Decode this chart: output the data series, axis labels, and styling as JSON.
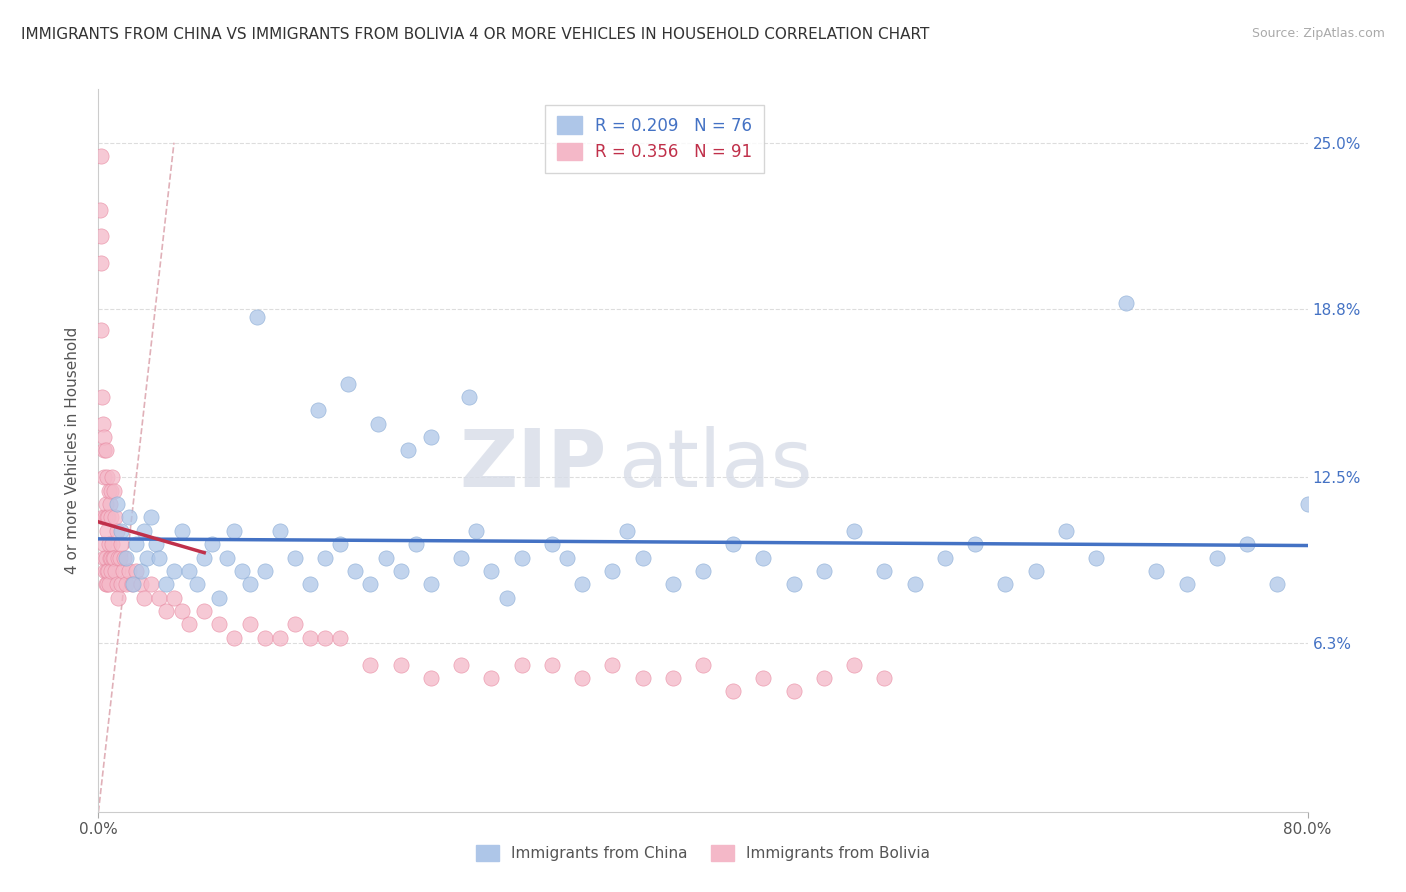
{
  "title": "IMMIGRANTS FROM CHINA VS IMMIGRANTS FROM BOLIVIA 4 OR MORE VEHICLES IN HOUSEHOLD CORRELATION CHART",
  "source": "Source: ZipAtlas.com",
  "ylabel": "4 or more Vehicles in Household",
  "xlim": [
    0.0,
    80.0
  ],
  "ylim": [
    0.0,
    27.0
  ],
  "ytick_labels_right": [
    "25.0%",
    "18.8%",
    "12.5%",
    "6.3%"
  ],
  "ytick_values": [
    25.0,
    18.8,
    12.5,
    6.3
  ],
  "china_R": 0.209,
  "china_N": 76,
  "bolivia_R": 0.356,
  "bolivia_N": 91,
  "china_color": "#aec6e8",
  "bolivia_color": "#f4b8c8",
  "china_line_color": "#4472c4",
  "bolivia_line_color": "#c0304a",
  "ref_line_color": "#d0a0a8",
  "legend_label_china": "Immigrants from China",
  "legend_label_bolivia": "Immigrants from Bolivia",
  "watermark_zip": "ZIP",
  "watermark_atlas": "atlas",
  "background_color": "#ffffff",
  "grid_color": "#dddddd",
  "china_x": [
    1.2,
    1.5,
    1.8,
    2.0,
    2.3,
    2.5,
    2.8,
    3.0,
    3.2,
    3.5,
    3.8,
    4.0,
    4.5,
    5.0,
    5.5,
    6.0,
    6.5,
    7.0,
    7.5,
    8.0,
    8.5,
    9.0,
    9.5,
    10.0,
    11.0,
    12.0,
    13.0,
    14.0,
    15.0,
    16.0,
    17.0,
    18.0,
    19.0,
    20.0,
    21.0,
    22.0,
    24.0,
    25.0,
    26.0,
    27.0,
    28.0,
    30.0,
    31.0,
    32.0,
    34.0,
    35.0,
    36.0,
    38.0,
    40.0,
    42.0,
    44.0,
    46.0,
    48.0,
    50.0,
    52.0,
    54.0,
    56.0,
    58.0,
    60.0,
    62.0,
    64.0,
    66.0,
    68.0,
    70.0,
    72.0,
    74.0,
    76.0,
    78.0,
    80.0,
    18.5,
    20.5,
    16.5,
    14.5,
    22.0,
    24.5,
    10.5
  ],
  "china_y": [
    11.5,
    10.5,
    9.5,
    11.0,
    8.5,
    10.0,
    9.0,
    10.5,
    9.5,
    11.0,
    10.0,
    9.5,
    8.5,
    9.0,
    10.5,
    9.0,
    8.5,
    9.5,
    10.0,
    8.0,
    9.5,
    10.5,
    9.0,
    8.5,
    9.0,
    10.5,
    9.5,
    8.5,
    9.5,
    10.0,
    9.0,
    8.5,
    9.5,
    9.0,
    10.0,
    8.5,
    9.5,
    10.5,
    9.0,
    8.0,
    9.5,
    10.0,
    9.5,
    8.5,
    9.0,
    10.5,
    9.5,
    8.5,
    9.0,
    10.0,
    9.5,
    8.5,
    9.0,
    10.5,
    9.0,
    8.5,
    9.5,
    10.0,
    8.5,
    9.0,
    10.5,
    9.5,
    19.0,
    9.0,
    8.5,
    9.5,
    10.0,
    8.5,
    11.5,
    14.5,
    13.5,
    16.0,
    15.0,
    14.0,
    15.5,
    18.5
  ],
  "bolivia_x": [
    0.1,
    0.15,
    0.2,
    0.2,
    0.25,
    0.3,
    0.3,
    0.35,
    0.35,
    0.4,
    0.4,
    0.4,
    0.45,
    0.45,
    0.5,
    0.5,
    0.5,
    0.5,
    0.55,
    0.55,
    0.6,
    0.6,
    0.6,
    0.65,
    0.65,
    0.7,
    0.7,
    0.7,
    0.75,
    0.75,
    0.8,
    0.8,
    0.85,
    0.85,
    0.9,
    0.9,
    0.95,
    1.0,
    1.0,
    1.1,
    1.1,
    1.2,
    1.2,
    1.3,
    1.3,
    1.4,
    1.5,
    1.5,
    1.6,
    1.7,
    1.8,
    2.0,
    2.2,
    2.5,
    2.8,
    3.0,
    3.5,
    4.0,
    4.5,
    5.0,
    5.5,
    6.0,
    7.0,
    8.0,
    9.0,
    10.0,
    11.0,
    12.0,
    13.0,
    14.0,
    15.0,
    16.0,
    18.0,
    20.0,
    22.0,
    24.0,
    26.0,
    28.0,
    30.0,
    32.0,
    34.0,
    36.0,
    38.0,
    40.0,
    42.0,
    44.0,
    46.0,
    48.0,
    50.0,
    52.0,
    0.15
  ],
  "bolivia_y": [
    22.5,
    20.5,
    24.5,
    18.0,
    15.5,
    14.5,
    11.0,
    13.5,
    10.0,
    14.0,
    12.5,
    9.5,
    11.0,
    9.0,
    13.5,
    11.5,
    9.5,
    8.5,
    11.0,
    9.0,
    12.5,
    10.5,
    8.5,
    11.0,
    9.0,
    12.0,
    10.0,
    8.5,
    11.5,
    9.5,
    12.0,
    9.5,
    11.0,
    9.0,
    12.5,
    10.0,
    9.5,
    12.0,
    9.5,
    11.0,
    9.0,
    10.5,
    8.5,
    9.5,
    8.0,
    9.5,
    10.0,
    8.5,
    9.0,
    9.5,
    8.5,
    9.0,
    8.5,
    9.0,
    8.5,
    8.0,
    8.5,
    8.0,
    7.5,
    8.0,
    7.5,
    7.0,
    7.5,
    7.0,
    6.5,
    7.0,
    6.5,
    6.5,
    7.0,
    6.5,
    6.5,
    6.5,
    5.5,
    5.5,
    5.0,
    5.5,
    5.0,
    5.5,
    5.5,
    5.0,
    5.5,
    5.0,
    5.0,
    5.5,
    4.5,
    5.0,
    4.5,
    5.0,
    5.5,
    5.0,
    21.5
  ]
}
